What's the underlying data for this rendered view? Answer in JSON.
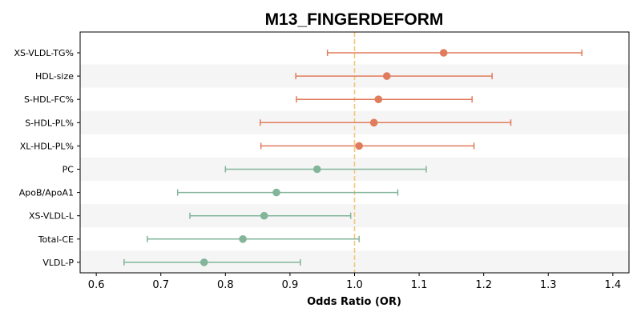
{
  "chart_data": {
    "type": "forest",
    "title": "M13_FINGERDEFORM",
    "xlabel": "Odds Ratio (OR)",
    "ylabel": "",
    "xlim": [
      0.575,
      1.425
    ],
    "xticks": [
      "0.6",
      "0.7",
      "0.8",
      "0.9",
      "1.0",
      "1.1",
      "1.2",
      "1.3",
      "1.4"
    ],
    "reference_line": 1.0,
    "reference_color": "#f0c878",
    "grid": false,
    "row_band_color": "#f5f5f5",
    "colors": {
      "above_one": "#e07b5b",
      "below_one": "#82b59a"
    },
    "rows": [
      {
        "label": "XS-VLDL-TG%",
        "or": 1.138,
        "lo": 0.958,
        "hi": 1.352
      },
      {
        "label": "HDL-size",
        "or": 1.05,
        "lo": 0.909,
        "hi": 1.213
      },
      {
        "label": "S-HDL-FC%",
        "or": 1.037,
        "lo": 0.91,
        "hi": 1.182
      },
      {
        "label": "S-HDL-PL%",
        "or": 1.03,
        "lo": 0.854,
        "hi": 1.242
      },
      {
        "label": "XL-HDL-PL%",
        "or": 1.007,
        "lo": 0.855,
        "hi": 1.185
      },
      {
        "label": "PC",
        "or": 0.942,
        "lo": 0.8,
        "hi": 1.111
      },
      {
        "label": "ApoB/ApoA1",
        "or": 0.879,
        "lo": 0.726,
        "hi": 1.067
      },
      {
        "label": "XS-VLDL-L",
        "or": 0.86,
        "lo": 0.745,
        "hi": 0.994
      },
      {
        "label": "Total-CE",
        "or": 0.827,
        "lo": 0.679,
        "hi": 1.007
      },
      {
        "label": "VLDL-P",
        "or": 0.767,
        "lo": 0.643,
        "hi": 0.916
      }
    ]
  }
}
